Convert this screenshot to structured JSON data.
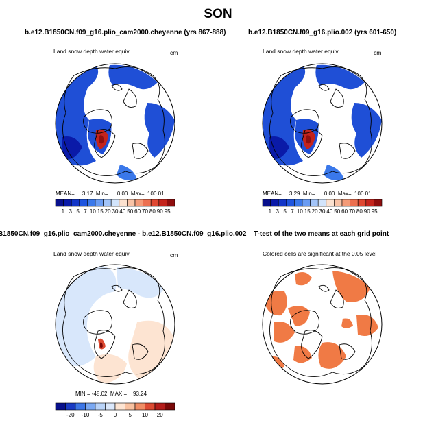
{
  "figure": {
    "season": "SON"
  },
  "colors": {
    "snow_scale": [
      "#08108c",
      "#0a1aa8",
      "#1336c8",
      "#1f55de",
      "#3a78ea",
      "#6a9cf2",
      "#a2c4f8",
      "#d2e4fb",
      "#fbe1cf",
      "#f9c3a6",
      "#f49b78",
      "#ec7050",
      "#df4731",
      "#c4241c",
      "#8f0e0e"
    ],
    "diff_scale": [
      "#08108c",
      "#1a3bc4",
      "#3d76e6",
      "#7aa8f2",
      "#b9d3f8",
      "#dbe8fb",
      "#fde4d2",
      "#f8c1a0",
      "#f08d65",
      "#dc4a32",
      "#b41c1a",
      "#7a0808"
    ],
    "ttest": "#f07a45",
    "land_outline": "#000000"
  },
  "panels": [
    {
      "title": "b.e12.B1850CN.f09_g16.plio_cam2000.cheyenne (yrs 867-888)",
      "variable": "Land snow depth water equiv",
      "units": "cm",
      "stats": "MEAN=     3.17  Min=      0.00  Max=  100.01",
      "colorbar_labels": [
        "1",
        "3",
        "5",
        "7",
        "10",
        "15",
        "20",
        "30",
        "40",
        "50",
        "60",
        "70",
        "80",
        "90",
        "95"
      ]
    },
    {
      "title": "b.e12.B1850CN.f09_g16.plio.002 (yrs 601-650)",
      "variable": "Land snow depth water equiv",
      "units": "cm",
      "stats": "MEAN=     3.29  Min=      0.00  Max=  100.01",
      "colorbar_labels": [
        "1",
        "3",
        "5",
        "7",
        "10",
        "15",
        "20",
        "30",
        "40",
        "50",
        "60",
        "70",
        "80",
        "90",
        "95"
      ]
    },
    {
      "title": "B1850CN.f09_g16.plio_cam2000.cheyenne - b.e12.B1850CN.f09_g16.plio.002",
      "variable": "Land snow depth water equiv",
      "units": "cm",
      "stats": "MIN = -48.02  MAX =    93.24",
      "colorbar_labels": [
        "-20",
        "-10",
        "-5",
        "0",
        "5",
        "10",
        "20"
      ]
    },
    {
      "title": "T-test of the two means at each grid point",
      "variable": "Colored cells are significant at the 0.05 level"
    }
  ],
  "chart_data": [
    {
      "type": "heatmap",
      "title": "b.e12.B1850CN.f09_g16.plio_cam2000.cheyenne (yrs 867-888)",
      "variable": "Land snow depth water equiv",
      "units": "cm",
      "projection": "polar stereographic, north pole",
      "stats": {
        "mean": 3.17,
        "min": 0.0,
        "max": 100.01
      },
      "colorbar_levels": [
        1,
        3,
        5,
        7,
        10,
        15,
        20,
        30,
        40,
        50,
        60,
        70,
        80,
        90,
        95
      ]
    },
    {
      "type": "heatmap",
      "title": "b.e12.B1850CN.f09_g16.plio.002 (yrs 601-650)",
      "variable": "Land snow depth water equiv",
      "units": "cm",
      "projection": "polar stereographic, north pole",
      "stats": {
        "mean": 3.29,
        "min": 0.0,
        "max": 100.01
      },
      "colorbar_levels": [
        1,
        3,
        5,
        7,
        10,
        15,
        20,
        30,
        40,
        50,
        60,
        70,
        80,
        90,
        95
      ]
    },
    {
      "type": "heatmap",
      "title": "B1850CN.f09_g16.plio_cam2000.cheyenne - b.e12.B1850CN.f09_g16.plio.002",
      "variable": "Land snow depth water equiv",
      "units": "cm",
      "projection": "polar stereographic, north pole",
      "stats": {
        "min": -48.02,
        "max": 93.24
      },
      "colorbar_levels": [
        -20,
        -10,
        -5,
        0,
        5,
        10,
        20
      ]
    },
    {
      "type": "heatmap",
      "title": "T-test of the two means at each grid point",
      "note": "Colored cells are significant at the 0.05 level",
      "projection": "polar stereographic, north pole",
      "significance_level": 0.05
    }
  ]
}
